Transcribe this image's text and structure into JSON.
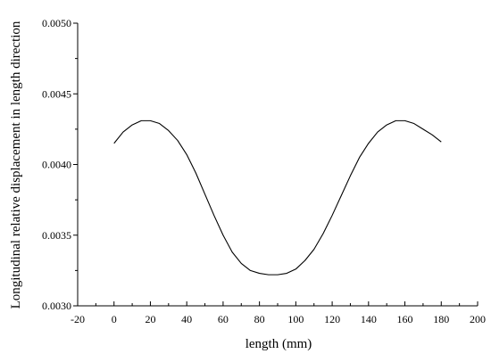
{
  "chart_data": {
    "type": "line",
    "title": "",
    "xlabel": "length  (mm)",
    "ylabel": "Longitudinal relative  displacement in length direction",
    "xlim": [
      -20,
      200
    ],
    "ylim": [
      0.003,
      0.005
    ],
    "x_ticks": [
      -20,
      0,
      20,
      40,
      60,
      80,
      100,
      120,
      140,
      160,
      180,
      200
    ],
    "x_tick_labels": [
      "-20",
      "0",
      "20",
      "40",
      "60",
      "80",
      "100",
      "120",
      "140",
      "160",
      "180",
      "200"
    ],
    "y_ticks": [
      0.003,
      0.0035,
      0.004,
      0.0045,
      0.005
    ],
    "y_tick_labels": [
      "0.0030",
      "0.0035",
      "0.0040",
      "0.0045",
      "0.0050"
    ],
    "grid": false,
    "legend": "none",
    "line_color": "#000000",
    "series": [
      {
        "x": [
          0,
          5,
          10,
          15,
          20,
          25,
          30,
          35,
          40,
          45,
          50,
          55,
          60,
          65,
          70,
          75,
          80,
          85,
          90,
          95,
          100,
          105,
          110,
          115,
          120,
          125,
          130,
          135,
          140,
          145,
          150,
          155,
          160,
          165,
          170,
          175,
          180
        ],
        "values": [
          0.00415,
          0.00423,
          0.00428,
          0.00431,
          0.00431,
          0.00429,
          0.00424,
          0.00417,
          0.00407,
          0.00394,
          0.00379,
          0.00364,
          0.0035,
          0.00338,
          0.0033,
          0.00325,
          0.00323,
          0.00322,
          0.00322,
          0.00323,
          0.00326,
          0.00332,
          0.0034,
          0.00351,
          0.00364,
          0.00378,
          0.00392,
          0.00405,
          0.00415,
          0.00423,
          0.00428,
          0.00431,
          0.00431,
          0.00429,
          0.00425,
          0.00421,
          0.00416
        ]
      }
    ]
  }
}
